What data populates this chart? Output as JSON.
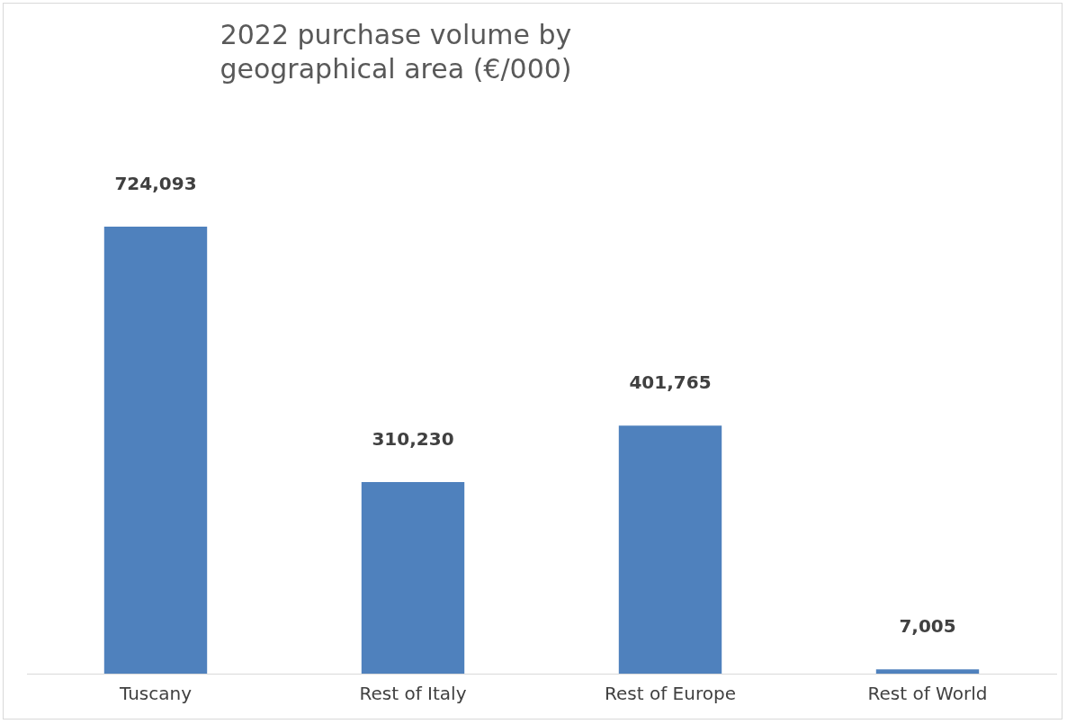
{
  "chart_data": {
    "type": "bar",
    "title": "2022 purchase volume by geographical area (€/000)",
    "categories": [
      "Tuscany",
      "Rest of Italy",
      "Rest of Europe",
      "Rest of World"
    ],
    "values": [
      724093,
      310230,
      401765,
      7005
    ],
    "value_labels": [
      "724,093",
      "310,230",
      "401,765",
      "7,005"
    ],
    "color": "#4f81bd",
    "grid": false,
    "legend": false
  }
}
